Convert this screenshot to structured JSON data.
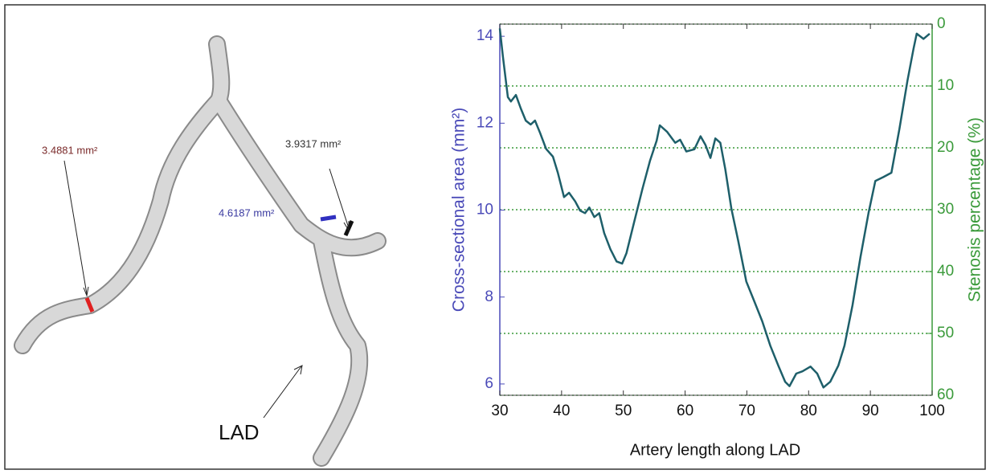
{
  "annotations": {
    "left_label": "3.4881 mm²",
    "right_label": "3.9317 mm²",
    "mid_label": "4.6187 mm²",
    "vessel_label": "LAD"
  },
  "chart_data": {
    "type": "line",
    "xlabel": "Artery length along LAD",
    "ylabel": "Cross-sectional area (mm²)",
    "y2label": "Stenosis percentage (%)",
    "xlim": [
      30,
      100
    ],
    "xticks": [
      30,
      40,
      50,
      60,
      70,
      80,
      90,
      100
    ],
    "ylim": [
      5.74,
      14.28
    ],
    "yticks": [
      6,
      8,
      10,
      12,
      14
    ],
    "y2lim": [
      60,
      0
    ],
    "y2ticks": [
      0,
      10,
      20,
      30,
      40,
      50,
      60
    ],
    "grid": true,
    "series": [
      {
        "color": "#1e5f6a",
        "x": [
          30,
          30.5,
          31.3,
          31.8,
          32.6,
          33.4,
          34.2,
          35,
          35.7,
          36.5,
          37.5,
          38.6,
          39.4,
          40.4,
          41.2,
          42.2,
          43,
          43.8,
          44.5,
          45.3,
          46.1,
          46.9,
          47.9,
          48.9,
          49.8,
          50.5,
          51.8,
          53.1,
          54.3,
          55.4,
          55.9,
          57.1,
          58.4,
          59.2,
          60.2,
          61.5,
          62.5,
          63.3,
          64.1,
          64.9,
          65.7,
          66.5,
          67.5,
          68.6,
          69.9,
          71.2,
          72.5,
          73.8,
          75.1,
          76.2,
          76.9,
          78,
          79,
          80.3,
          81.4,
          82.4,
          83.5,
          84.8,
          85.8,
          87.1,
          88.4,
          89.7,
          90.8,
          92.1,
          93.4,
          94.7,
          96,
          97,
          97.5,
          98.6,
          99.6
        ],
        "values": [
          14.18,
          13.54,
          12.6,
          12.5,
          12.65,
          12.34,
          12.06,
          11.97,
          12.06,
          11.78,
          11.41,
          11.23,
          10.86,
          10.3,
          10.4,
          10.2,
          9.99,
          9.93,
          10.06,
          9.84,
          9.93,
          9.47,
          9.1,
          8.82,
          8.77,
          9.01,
          9.75,
          10.49,
          11.13,
          11.6,
          11.95,
          11.8,
          11.55,
          11.62,
          11.35,
          11.4,
          11.7,
          11.5,
          11.2,
          11.65,
          11.55,
          10.95,
          10.03,
          9.29,
          8.36,
          7.9,
          7.44,
          6.88,
          6.42,
          6.05,
          5.95,
          6.24,
          6.29,
          6.4,
          6.24,
          5.92,
          6.05,
          6.42,
          6.88,
          7.81,
          8.92,
          9.93,
          10.67,
          10.76,
          10.86,
          11.87,
          12.98,
          13.72,
          14.06,
          13.94,
          14.06
        ]
      }
    ]
  }
}
